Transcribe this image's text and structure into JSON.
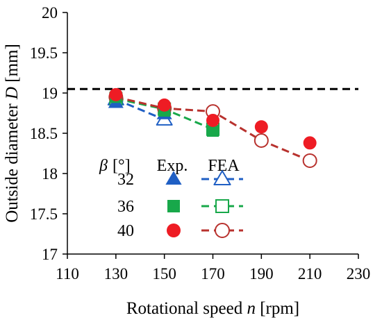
{
  "chart_data": {
    "type": "scatter",
    "xlabel": {
      "prefix": "Rotational speed ",
      "var": "n",
      "suffix": " [rpm]"
    },
    "ylabel": {
      "prefix": "Outside diameter ",
      "var": "D",
      "suffix": " [mm]"
    },
    "xlim": [
      110,
      230
    ],
    "ylim": [
      17,
      20
    ],
    "xticks": [
      110,
      130,
      150,
      170,
      190,
      210,
      230
    ],
    "yticks": [
      17,
      17.5,
      18,
      18.5,
      19,
      19.5,
      20
    ],
    "ytick_labels": [
      "17",
      "17.5",
      "18",
      "18.5",
      "19",
      "19.5",
      "20"
    ],
    "grid": false,
    "reference_line": {
      "y": 19.05,
      "style": "dashed",
      "color": "#000000"
    },
    "legend": {
      "placement": "lower-left",
      "header": {
        "beta": "β",
        "unit": "[°]",
        "exp": "Exp.",
        "fea": "FEA"
      }
    },
    "series": [
      {
        "name": "32",
        "color": "#1f5fc4",
        "marker": "triangle",
        "exp": {
          "x": [
            130,
            150
          ],
          "y": [
            18.88,
            18.74
          ]
        },
        "fea": {
          "x": [
            130,
            150
          ],
          "y": [
            18.92,
            18.67
          ]
        }
      },
      {
        "name": "36",
        "color": "#18a84a",
        "marker": "square",
        "exp": {
          "x": [
            130,
            150,
            170
          ],
          "y": [
            18.95,
            18.78,
            18.53
          ]
        },
        "fea": {
          "x": [
            130,
            150,
            170
          ],
          "y": [
            18.93,
            18.8,
            18.55
          ]
        }
      },
      {
        "name": "40",
        "color": "#ee1c24",
        "line_color": "#b8322e",
        "marker": "circle",
        "exp": {
          "x": [
            130,
            150,
            170,
            190,
            210
          ],
          "y": [
            18.98,
            18.85,
            18.66,
            18.58,
            18.38
          ]
        },
        "fea": {
          "x": [
            130,
            150,
            170,
            190,
            210
          ],
          "y": [
            18.95,
            18.81,
            18.77,
            18.41,
            18.16
          ]
        }
      }
    ]
  }
}
